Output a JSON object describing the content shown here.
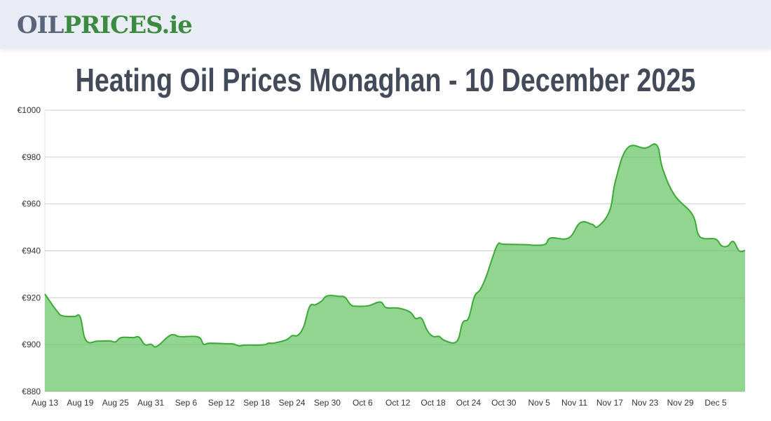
{
  "header": {
    "logo_part1": "OIL",
    "logo_part2": "PRICES.ie"
  },
  "page_title": "Heating Oil Prices Monaghan - 10 December 2025",
  "chart_data": {
    "type": "area",
    "title": "",
    "xlabel": "",
    "ylabel": "",
    "ylim": [
      880,
      1000
    ],
    "y_ticks": [
      880,
      900,
      920,
      940,
      960,
      980,
      1000
    ],
    "y_tick_prefix": "€",
    "x_tick_labels": [
      "Aug 13",
      "Aug 19",
      "Aug 25",
      "Aug 31",
      "Sep 6",
      "Sep 12",
      "Sep 18",
      "Sep 24",
      "Sep 30",
      "Oct 6",
      "Oct 12",
      "Oct 18",
      "Oct 24",
      "Oct 30",
      "Nov 5",
      "Nov 11",
      "Nov 17",
      "Nov 23",
      "Nov 29",
      "Dec 5"
    ],
    "grid": "horizontal",
    "colors": {
      "line": "#3aaa35",
      "fill": "#91d591",
      "grid": "#e0e0e0"
    },
    "series": [
      {
        "x": [
          "2025-08-13",
          "2025-08-15",
          "2025-08-16",
          "2025-08-18",
          "2025-08-19",
          "2025-08-20",
          "2025-08-22",
          "2025-08-24",
          "2025-08-25",
          "2025-08-26",
          "2025-08-28",
          "2025-08-29",
          "2025-08-30",
          "2025-08-31",
          "2025-09-01",
          "2025-09-03",
          "2025-09-04",
          "2025-09-05",
          "2025-09-08",
          "2025-09-09",
          "2025-09-10",
          "2025-09-13",
          "2025-09-14",
          "2025-09-15",
          "2025-09-16",
          "2025-09-19",
          "2025-09-20",
          "2025-09-21",
          "2025-09-23",
          "2025-09-24",
          "2025-09-25",
          "2025-09-26",
          "2025-09-27",
          "2025-09-28",
          "2025-09-29",
          "2025-09-30",
          "2025-10-02",
          "2025-10-03",
          "2025-10-04",
          "2025-10-05",
          "2025-10-07",
          "2025-10-09",
          "2025-10-10",
          "2025-10-12",
          "2025-10-14",
          "2025-10-15",
          "2025-10-16",
          "2025-10-17",
          "2025-10-18",
          "2025-10-19",
          "2025-10-20",
          "2025-10-22",
          "2025-10-23",
          "2025-10-24",
          "2025-10-25",
          "2025-10-26",
          "2025-10-27",
          "2025-10-28",
          "2025-10-29",
          "2025-10-30",
          "2025-11-03",
          "2025-11-04",
          "2025-11-06",
          "2025-11-07",
          "2025-11-10",
          "2025-11-12",
          "2025-11-14",
          "2025-11-15",
          "2025-11-17",
          "2025-11-18",
          "2025-11-20",
          "2025-11-23",
          "2025-11-25",
          "2025-11-26",
          "2025-11-28",
          "2025-12-01",
          "2025-12-02",
          "2025-12-03",
          "2025-12-05",
          "2025-12-06",
          "2025-12-07",
          "2025-12-08",
          "2025-12-09",
          "2025-12-10"
        ],
        "values": [
          921.6,
          914.5,
          912.3,
          912,
          911.8,
          901.8,
          901.5,
          901.6,
          901.2,
          903,
          903,
          903.2,
          900,
          900.2,
          899.2,
          903.5,
          904.2,
          903.4,
          903.3,
          900.2,
          900.6,
          900.4,
          900.3,
          899.5,
          899.8,
          899.9,
          900.6,
          900.7,
          902,
          903.8,
          904,
          907.8,
          916.2,
          917,
          918.5,
          920.8,
          920.6,
          920.2,
          917,
          916.4,
          916.6,
          918.2,
          915.8,
          915.6,
          914,
          911.2,
          911.2,
          906,
          903.5,
          903.5,
          901.7,
          901.4,
          909.3,
          911.3,
          920.4,
          923.5,
          929,
          936.5,
          942.8,
          942.8,
          942.6,
          942.4,
          942.8,
          945.5,
          945.5,
          952,
          951.3,
          950.4,
          957.2,
          970.1,
          983.8,
          983.8,
          985,
          975,
          963.8,
          955.7,
          947.4,
          945.3,
          945,
          942.2,
          942,
          944,
          940,
          940.2
        ]
      }
    ]
  }
}
